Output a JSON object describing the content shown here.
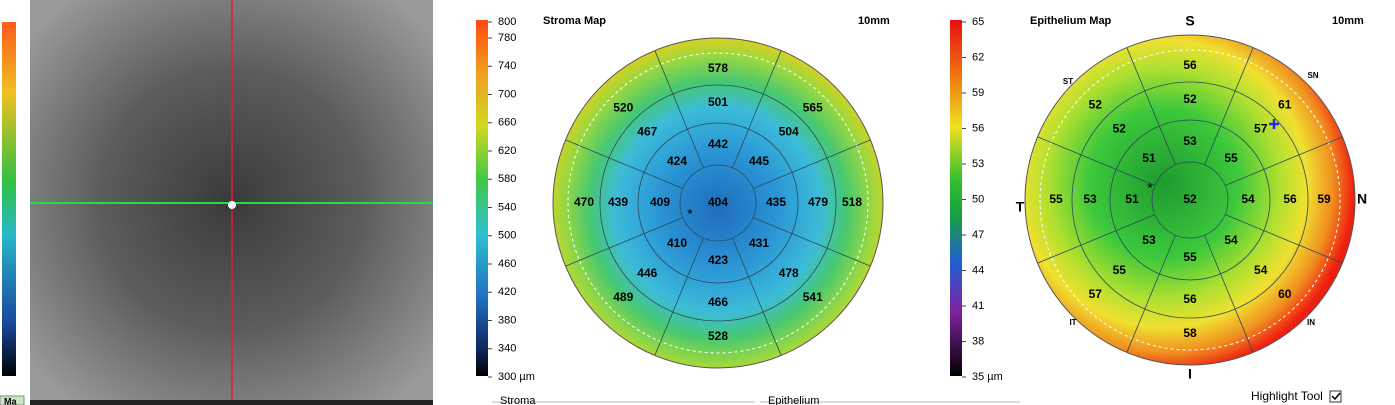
{
  "left_panel": {
    "button": "Ma"
  },
  "stroma_scale": {
    "labels": [
      "800",
      "780",
      "740",
      "700",
      "660",
      "620",
      "580",
      "540",
      "500",
      "460",
      "420",
      "380",
      "340",
      "300 µm"
    ]
  },
  "stroma_map": {
    "title": "Stroma Map",
    "diameter": "10mm",
    "center": "404",
    "ring1": [
      "442",
      "445",
      "435",
      "431",
      "423",
      "410",
      "409",
      "424"
    ],
    "ring2": [
      "501",
      "504",
      "479",
      "478",
      "466",
      "446",
      "439",
      "467"
    ],
    "ring3": [
      "578",
      "565",
      "518",
      "541",
      "528",
      "489",
      "470",
      "520"
    ]
  },
  "epithelium_scale": {
    "labels": [
      "65",
      "62",
      "59",
      "56",
      "53",
      "50",
      "47",
      "44",
      "41",
      "38",
      "35 µm"
    ]
  },
  "epithelium_map": {
    "title": "Epithelium Map",
    "diameter": "10mm",
    "center": "52",
    "ring1": [
      "53",
      "55",
      "54",
      "54",
      "55",
      "53",
      "51",
      "51"
    ],
    "ring2": [
      "52",
      "57",
      "56",
      "54",
      "56",
      "55",
      "53",
      "52"
    ],
    "ring3": [
      "56",
      "61",
      "59",
      "60",
      "58",
      "57",
      "55",
      "52"
    ],
    "orientation_labels": [
      "S",
      "SN",
      "N",
      "IN",
      "I",
      "IT",
      "T",
      "ST"
    ]
  },
  "bottom": {
    "groups": [
      "Stroma",
      "Epithelium"
    ],
    "highlight_tool": "Highlight Tool"
  }
}
